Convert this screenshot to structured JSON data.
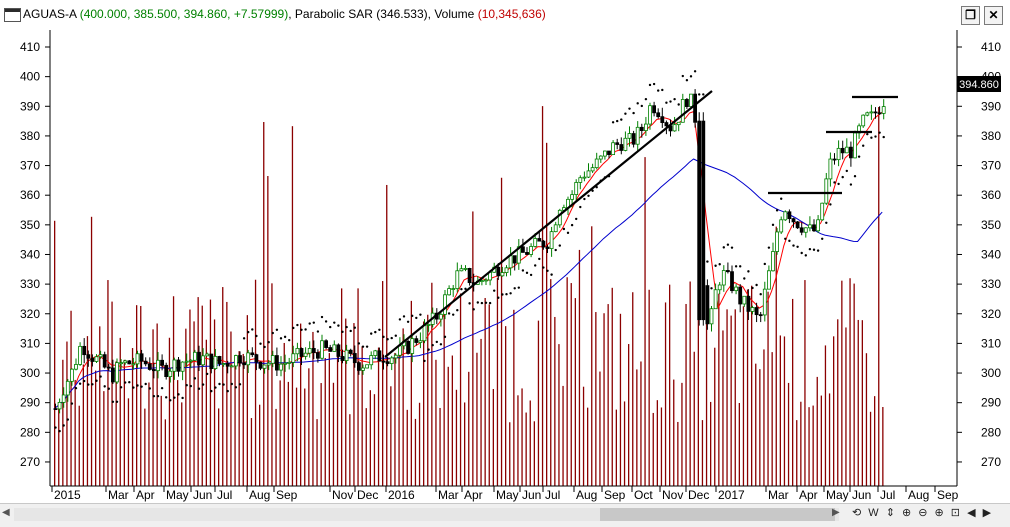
{
  "window": {
    "symbol": "AGUAS-A",
    "ohlc_text": "(400.000, 385.500, 394.860, +7.57999)",
    "sar_label": "Parabolic SAR",
    "sar_value": "(346.533)",
    "volume_label": "Volume",
    "volume_value": "(10,345,636)",
    "restore_icon": "restore-icon",
    "close_icon": "close-icon"
  },
  "chart_data": {
    "type": "candlestick",
    "title": "AGUAS-A",
    "last_price_label": "394.860",
    "y_ticks": [
      410,
      400,
      390,
      380,
      370,
      360,
      350,
      340,
      330,
      320,
      310,
      300,
      290,
      280,
      270
    ],
    "x_labels": [
      "2015",
      "Mar",
      "Apr",
      "May",
      "Jun",
      "Jul",
      "Aug",
      "Sep",
      "Nov",
      "Dec",
      "2016",
      "Mar",
      "Apr",
      "May",
      "Jun",
      "Jul",
      "Aug",
      "Sep",
      "Oct",
      "Nov",
      "Dec",
      "2017",
      "Mar",
      "Apr",
      "May",
      "Jun",
      "Jul",
      "Aug",
      "Sep"
    ],
    "candles": [],
    "indicators": [
      "Parabolic SAR",
      "Moving average (red)",
      "Moving average (blue)",
      "Volume"
    ],
    "colors": {
      "up": "#008000",
      "down": "#000000",
      "volume": "#8b0000",
      "ma_fast": "#ff0000",
      "ma_slow": "#0000cc",
      "sar": "#000000"
    }
  },
  "scrollbar": {
    "tools": "⟲ W ⇕ ⊕ ⊖ ⊕ ⊡ ◀ ▶"
  }
}
